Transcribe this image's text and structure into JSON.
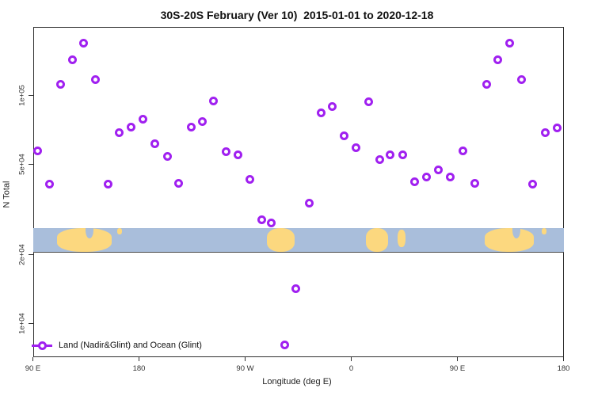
{
  "chart_data": {
    "type": "scatter",
    "title": "30S-20S February (Ver 10)  2015-01-01 to 2020-12-18",
    "xlabel": "Longitude (deg E)",
    "ylabel": "N Total",
    "y_scale": "log",
    "grid": false,
    "x_range": [
      90,
      540
    ],
    "y_range": [
      7100,
      200000
    ],
    "x_ticks": [
      {
        "v": 90,
        "label": "90 E"
      },
      {
        "v": 180,
        "label": "180"
      },
      {
        "v": 270,
        "label": "90 W"
      },
      {
        "v": 360,
        "label": "0"
      },
      {
        "v": 450,
        "label": "90 E"
      },
      {
        "v": 540,
        "label": "180"
      }
    ],
    "y_ticks": [
      {
        "v": 10000,
        "label": "1e+04"
      },
      {
        "v": 20000,
        "label": "2e+04"
      },
      {
        "v": 50000,
        "label": "5e+04"
      },
      {
        "v": 100000,
        "label": "1e+05"
      }
    ],
    "legend": {
      "position": "bottom-left",
      "label": "Land (Nadir&Glint) and Ocean (Glint)",
      "marker": "open-circle-on-line"
    },
    "marker_color": "#A020F0",
    "series": [
      {
        "name": "Land (Nadir&Glint) and Ocean (Glint)",
        "points": [
          [
            93.8,
            57200
          ],
          [
            104.3,
            41000
          ],
          [
            113.7,
            111400
          ],
          [
            123.8,
            142800
          ],
          [
            133.2,
            169800
          ],
          [
            143.3,
            117800
          ],
          [
            154.0,
            41000
          ],
          [
            163.4,
            68900
          ],
          [
            173.5,
            72400
          ],
          [
            183.6,
            78800
          ],
          [
            193.7,
            61600
          ],
          [
            204.4,
            54200
          ],
          [
            213.8,
            41300
          ],
          [
            224.1,
            72500
          ],
          [
            234.0,
            76900
          ],
          [
            243.4,
            94700
          ],
          [
            253.7,
            56600
          ],
          [
            264.0,
            54700
          ],
          [
            273.8,
            42800
          ],
          [
            284.4,
            28500
          ],
          [
            292.2,
            27600
          ],
          [
            303.4,
            8050
          ],
          [
            313.3,
            14200
          ],
          [
            324.5,
            33700
          ],
          [
            334.3,
            84000
          ],
          [
            343.7,
            89100
          ],
          [
            354.1,
            66600
          ],
          [
            363.9,
            58900
          ],
          [
            374.9,
            93600
          ],
          [
            384.1,
            52300
          ],
          [
            392.8,
            55000
          ],
          [
            403.8,
            54700
          ],
          [
            413.6,
            41900
          ],
          [
            423.7,
            43800
          ],
          [
            434.2,
            47100
          ],
          [
            443.8,
            43800
          ],
          [
            454.4,
            57200
          ],
          [
            464.9,
            41100
          ],
          [
            474.7,
            111700
          ],
          [
            484.1,
            143100
          ],
          [
            494.5,
            169200
          ],
          [
            504.3,
            117500
          ],
          [
            514.0,
            41000
          ],
          [
            524.4,
            68600
          ],
          [
            534.3,
            72200
          ]
        ]
      }
    ],
    "map_strip": {
      "description": "world map band 30S-20S",
      "ocean_color": "#a9bedb",
      "land_color": "#fcd87f",
      "n_top": 26200,
      "n_bottom": 20600,
      "features": [
        {
          "name": "australia",
          "from": 110.8,
          "to": 156.5,
          "top": 0,
          "bottom": 1,
          "kind": "land"
        },
        {
          "name": "gulf-of-carpentaria",
          "from": 134.5,
          "to": 141.5,
          "top": -0.3,
          "bottom": 0.42,
          "kind": "water"
        },
        {
          "name": "new-caledonia",
          "from": 161.5,
          "to": 165.5,
          "top": 0,
          "bottom": 0.28,
          "kind": "land"
        },
        {
          "name": "south-america",
          "from": 288.5,
          "to": 312.0,
          "top": 0,
          "bottom": 1,
          "kind": "land"
        },
        {
          "name": "africa",
          "from": 372.5,
          "to": 391.5,
          "top": 0,
          "bottom": 1,
          "kind": "land"
        },
        {
          "name": "madagascar",
          "from": 399.5,
          "to": 406.0,
          "top": 0.05,
          "bottom": 0.8,
          "kind": "land"
        },
        {
          "name": "australia-2",
          "from": 473.0,
          "to": 515.0,
          "top": 0,
          "bottom": 1,
          "kind": "land"
        },
        {
          "name": "gulf-of-carpentaria-2",
          "from": 496.5,
          "to": 503.5,
          "top": -0.3,
          "bottom": 0.42,
          "kind": "water"
        },
        {
          "name": "new-caledonia-2",
          "from": 521.5,
          "to": 525.5,
          "top": 0,
          "bottom": 0.28,
          "kind": "land"
        }
      ]
    }
  }
}
